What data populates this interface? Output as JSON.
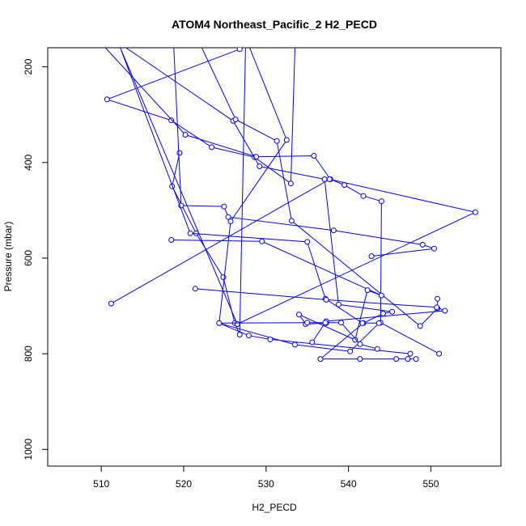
{
  "chart_data": {
    "type": "line",
    "title": "ATOM4 Northeast_Pacific_2 H2_PECD",
    "xlabel": "H2_PECD",
    "ylabel": "Pressure (mbar)",
    "xlim": [
      503.5,
      558.5
    ],
    "ylim": [
      1035,
      160
    ],
    "y_reversed": true,
    "x_ticks": [
      510,
      520,
      530,
      540,
      550
    ],
    "y_ticks": [
      200,
      400,
      600,
      800,
      1000
    ],
    "grid": false,
    "legend": "none",
    "line_color": "#0000ff",
    "marker": "open-circle",
    "x_tick_labels": [
      "510",
      "520",
      "530",
      "540",
      "550"
    ],
    "y_tick_labels": [
      "200",
      "400",
      "600",
      "800",
      "1000"
    ],
    "series": [
      {
        "x": [
          526.8,
          510.7,
          518.5,
          523.4,
          528.6,
          533,
          533.5
        ],
        "y": [
          163,
          268,
          312,
          368,
          389,
          444,
          160
        ]
      },
      {
        "x": [
          519.5,
          518.6,
          521.5,
          524.8,
          526.2,
          526.8,
          527.5
        ],
        "y": [
          380,
          450,
          548,
          640,
          736,
          760,
          160
        ]
      },
      {
        "x": [
          510.5,
          520.2,
          528.8,
          535.8,
          537.8,
          539.5,
          541.8,
          544,
          543.9,
          551
        ],
        "y": [
          160,
          342,
          388,
          386,
          435,
          447,
          470,
          481,
          735,
          800
        ]
      },
      {
        "x": [
          518.8,
          519.7,
          524.9,
          525.4,
          538.2,
          549,
          550.4,
          542.8
        ],
        "y": [
          160,
          490,
          492,
          514,
          542,
          572,
          580,
          596
        ]
      },
      {
        "x": [
          513,
          526,
          529.2,
          537.1,
          538.8,
          545.3,
          544.2,
          541.8,
          536.6,
          541.4,
          545.8,
          547.2,
          548.2
        ],
        "y": [
          160,
          313,
          408,
          435,
          697,
          712,
          716,
          736,
          811,
          811,
          811,
          811,
          811
        ]
      },
      {
        "x": [
          522.2,
          526.3,
          531.3,
          533.1,
          548.7,
          550.8,
          550.8
        ],
        "y": [
          160,
          310,
          355,
          522,
          742,
          705,
          685
        ]
      },
      {
        "x": [
          511.2,
          537.7,
          555.4,
          526.5,
          512.3,
          520.8,
          535,
          537.2,
          541.7,
          543.7,
          540.2,
          533.5,
          524.3,
          527.9,
          530.5,
          547.5
        ],
        "y": [
          695,
          435,
          504,
          738,
          160,
          548,
          566,
          685,
          736,
          736,
          795,
          781,
          736,
          762,
          770,
          800
        ]
      },
      {
        "x": [
          518.5,
          529.5,
          544,
          542.3,
          540.8,
          534,
          534.8,
          537.3
        ],
        "y": [
          562,
          565,
          678,
          667,
          771,
          718,
          738,
          736
        ]
      },
      {
        "x": [
          521.4,
          537.3,
          550.7,
          551.7,
          537.3,
          535.6
        ],
        "y": [
          664,
          687,
          703,
          710,
          732,
          776
        ]
      },
      {
        "x": [
          528,
          532.5,
          525.7,
          524.3,
          535,
          537.2,
          539.1,
          541.4,
          543.5
        ],
        "y": [
          160,
          353,
          523,
          736,
          735,
          735,
          735,
          780,
          790
        ]
      }
    ]
  }
}
